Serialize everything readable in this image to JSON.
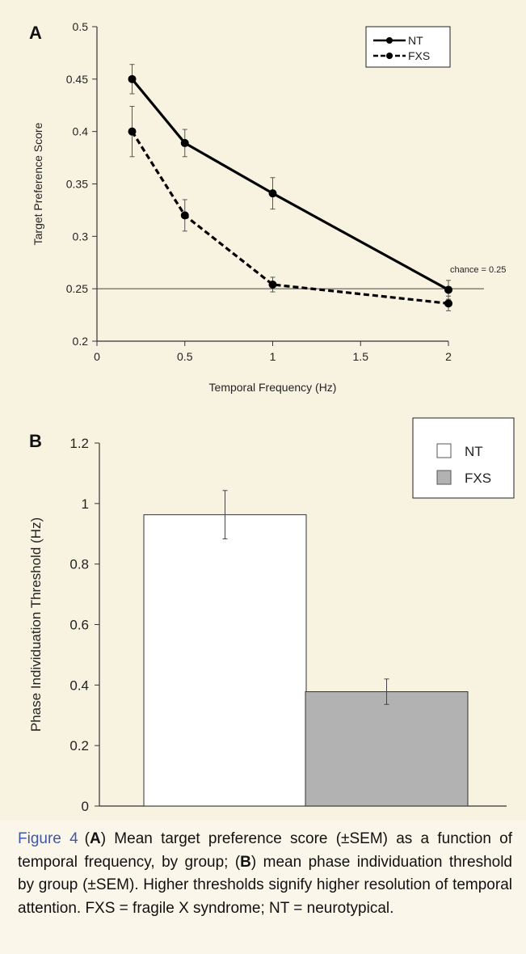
{
  "chart_data": [
    {
      "panel": "A",
      "type": "line",
      "x": [
        0.2,
        0.5,
        1,
        2
      ],
      "series": [
        {
          "name": "NT",
          "style": "solid",
          "values": [
            0.45,
            0.389,
            0.341,
            0.249
          ],
          "sem": [
            0.014,
            0.013,
            0.015,
            0.009
          ]
        },
        {
          "name": "FXS",
          "style": "dashed",
          "values": [
            0.4,
            0.32,
            0.254,
            0.236
          ],
          "sem": [
            0.024,
            0.015,
            0.007,
            0.007
          ]
        }
      ],
      "xlabel": "Temporal Frequency (Hz)",
      "ylabel": "Target Preference Score",
      "xlim": [
        0,
        2
      ],
      "ylim": [
        0.2,
        0.5
      ],
      "xticks": [
        "0",
        "0.5",
        "1",
        "1.5",
        "2"
      ],
      "yticks": [
        "0.2",
        "0.25",
        "0.3",
        "0.35",
        "0.4",
        "0.45",
        "0.5"
      ],
      "reference_line": {
        "y": 0.25,
        "label": "chance = 0.25"
      },
      "legend_position": "top-right",
      "grid": false
    },
    {
      "panel": "B",
      "type": "bar",
      "categories": [
        "NT",
        "FXS"
      ],
      "values": [
        0.963,
        0.378
      ],
      "sem": [
        0.08,
        0.042
      ],
      "colors": [
        "#ffffff",
        "#b2b2b2"
      ],
      "ylabel": "Phase Individuation Threshold (Hz)",
      "ylim": [
        0,
        1.2
      ],
      "yticks": [
        "0",
        "0.2",
        "0.4",
        "0.6",
        "0.8",
        "1",
        "1.2"
      ],
      "legend_position": "top-right",
      "grid": false
    }
  ],
  "caption": {
    "figure_label": "Figure 4",
    "parts": [
      "(",
      "A",
      ") Mean target preference score (±SEM) as a function of temporal frequency, by group; (",
      "B",
      ") mean phase individuation threshold by group (±SEM). Higher thresholds signify higher resolution of temporal attention. FXS = fragile X syndrome; NT = neurotypical."
    ]
  }
}
